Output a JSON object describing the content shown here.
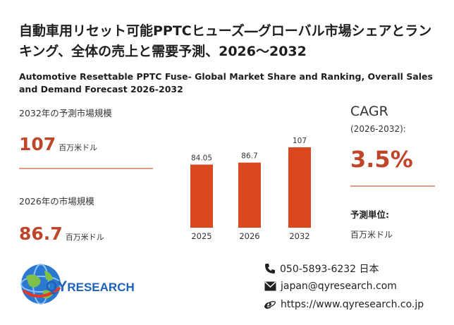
{
  "header": {
    "title_ja": "自動車用リセット可能PPTCヒューズ―グローバル市場シェアとランキング、全体の売上と需要予測、2026～2032",
    "title_en": "Automotive Resettable PPTC Fuse- Global Market Share and Ranking, Overall Sales and Demand Forecast 2026-2032"
  },
  "stats": {
    "market_2032": {
      "label": "2032年の予測市場規模",
      "value": "107",
      "unit": "百万米ドル"
    },
    "market_2026": {
      "label": "2026年の市場規模",
      "value": "86.7",
      "unit": "百万米ドル"
    }
  },
  "cagr": {
    "label": "CAGR",
    "period": "(2026-2032):",
    "value": "3.5%"
  },
  "forecast_unit": {
    "title": "予測単位:",
    "value": "百万米ドル"
  },
  "contact": {
    "phone": "050-5893-6232 日本",
    "email": "japan@qyresearch.com",
    "website": "https://www.qyresearch.co.jp"
  },
  "logo": {
    "brand_qy": "QY",
    "brand_rest": "RESEARCH"
  },
  "colors": {
    "accent": "#c0462a",
    "bar": "#d9481f",
    "divider": "#e79a83",
    "logo": "#1d62b8"
  },
  "chart_data": {
    "type": "bar",
    "categories": [
      "2025",
      "2026",
      "2032"
    ],
    "values": [
      84.05,
      86.7,
      107
    ],
    "data_labels": [
      "84.05",
      "86.7",
      "107"
    ],
    "title": "",
    "xlabel": "",
    "ylabel": ""
  }
}
